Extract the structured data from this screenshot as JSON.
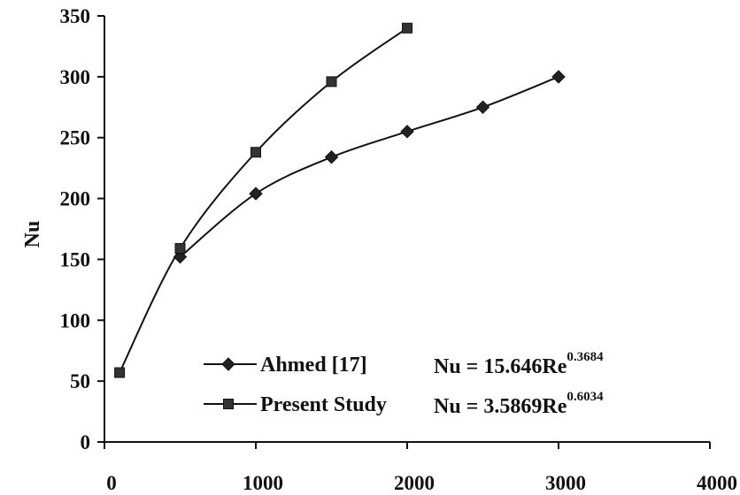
{
  "chart_data": {
    "type": "scatter",
    "title": "",
    "xlabel": "",
    "ylabel": "Nu",
    "xlim": [
      0,
      4000
    ],
    "ylim": [
      0,
      350
    ],
    "x_ticks": [
      "0",
      "1000",
      "2000",
      "3000",
      "4000"
    ],
    "y_ticks": [
      "0",
      "50",
      "100",
      "150",
      "200",
      "250",
      "300",
      "350"
    ],
    "grid": false,
    "legend_position": "lower-center",
    "series": [
      {
        "name": "Ahmed [17]",
        "marker": "diamond",
        "equation": "Nu = 15.646Re",
        "equation_exponent": "0.3684",
        "x": [
          500,
          1000,
          1500,
          2000,
          2500,
          3000
        ],
        "y": [
          152,
          204,
          234,
          255,
          275,
          300
        ],
        "color": "#111111"
      },
      {
        "name": "Present Study",
        "marker": "square",
        "equation": "Nu = 3.5869Re",
        "equation_exponent": "0.6034",
        "x": [
          100,
          500,
          1000,
          1500,
          2000
        ],
        "y": [
          57,
          159,
          238,
          296,
          340
        ],
        "color": "#111111"
      }
    ]
  }
}
